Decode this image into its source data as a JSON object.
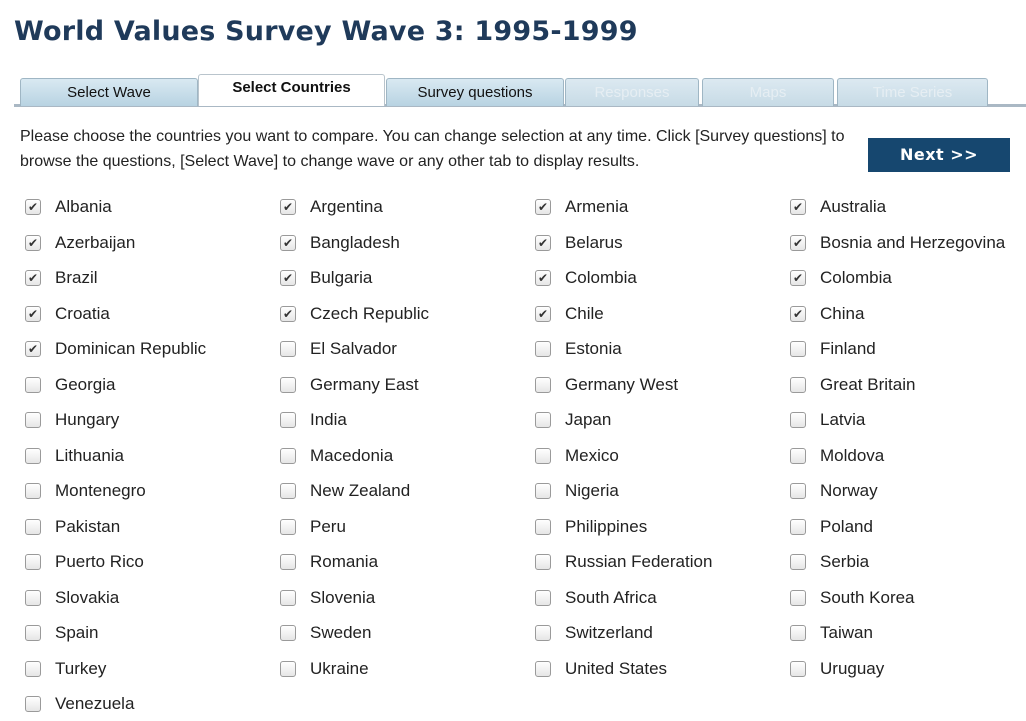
{
  "page": {
    "title": "World Values Survey Wave 3: 1995-1999"
  },
  "tabs": [
    {
      "label": "Select Wave",
      "state": "normal"
    },
    {
      "label": "Select Countries",
      "state": "active"
    },
    {
      "label": "Survey questions",
      "state": "normal"
    },
    {
      "label": "Responses",
      "state": "disabled"
    },
    {
      "label": "Maps",
      "state": "disabled"
    },
    {
      "label": "Time Series",
      "state": "disabled"
    }
  ],
  "intro": {
    "text": "Please choose the countries you want to compare. You can change selection at any time. Click [Survey questions] to browse the questions, [Select Wave] to change wave or any other tab to display results."
  },
  "next_button": {
    "label": "Next >>"
  },
  "countries": [
    {
      "label": "Albania",
      "checked": true
    },
    {
      "label": "Argentina",
      "checked": true
    },
    {
      "label": "Armenia",
      "checked": true
    },
    {
      "label": "Australia",
      "checked": true
    },
    {
      "label": "Azerbaijan",
      "checked": true
    },
    {
      "label": "Bangladesh",
      "checked": true
    },
    {
      "label": "Belarus",
      "checked": true
    },
    {
      "label": "Bosnia and Herzegovina",
      "checked": true
    },
    {
      "label": "Brazil",
      "checked": true
    },
    {
      "label": "Bulgaria",
      "checked": true
    },
    {
      "label": "Colombia",
      "checked": true
    },
    {
      "label": "Colombia",
      "checked": true
    },
    {
      "label": "Croatia",
      "checked": true
    },
    {
      "label": "Czech Republic",
      "checked": true
    },
    {
      "label": "Chile",
      "checked": true
    },
    {
      "label": "China",
      "checked": true
    },
    {
      "label": "Dominican Republic",
      "checked": true
    },
    {
      "label": "El Salvador",
      "checked": false
    },
    {
      "label": "Estonia",
      "checked": false
    },
    {
      "label": "Finland",
      "checked": false
    },
    {
      "label": "Georgia",
      "checked": false
    },
    {
      "label": "Germany East",
      "checked": false
    },
    {
      "label": "Germany West",
      "checked": false
    },
    {
      "label": "Great Britain",
      "checked": false
    },
    {
      "label": "Hungary",
      "checked": false
    },
    {
      "label": "India",
      "checked": false
    },
    {
      "label": "Japan",
      "checked": false
    },
    {
      "label": "Latvia",
      "checked": false
    },
    {
      "label": "Lithuania",
      "checked": false
    },
    {
      "label": "Macedonia",
      "checked": false
    },
    {
      "label": "Mexico",
      "checked": false
    },
    {
      "label": "Moldova",
      "checked": false
    },
    {
      "label": "Montenegro",
      "checked": false
    },
    {
      "label": "New Zealand",
      "checked": false
    },
    {
      "label": "Nigeria",
      "checked": false
    },
    {
      "label": "Norway",
      "checked": false
    },
    {
      "label": "Pakistan",
      "checked": false
    },
    {
      "label": "Peru",
      "checked": false
    },
    {
      "label": "Philippines",
      "checked": false
    },
    {
      "label": "Poland",
      "checked": false
    },
    {
      "label": "Puerto Rico",
      "checked": false
    },
    {
      "label": "Romania",
      "checked": false
    },
    {
      "label": "Russian Federation",
      "checked": false
    },
    {
      "label": "Serbia",
      "checked": false
    },
    {
      "label": "Slovakia",
      "checked": false
    },
    {
      "label": "Slovenia",
      "checked": false
    },
    {
      "label": "South Africa",
      "checked": false
    },
    {
      "label": "South Korea",
      "checked": false
    },
    {
      "label": "Spain",
      "checked": false
    },
    {
      "label": "Sweden",
      "checked": false
    },
    {
      "label": "Switzerland",
      "checked": false
    },
    {
      "label": "Taiwan",
      "checked": false
    },
    {
      "label": "Turkey",
      "checked": false
    },
    {
      "label": "Ukraine",
      "checked": false
    },
    {
      "label": "United States",
      "checked": false
    },
    {
      "label": "Uruguay",
      "checked": false
    },
    {
      "label": "Venezuela",
      "checked": false
    }
  ]
}
